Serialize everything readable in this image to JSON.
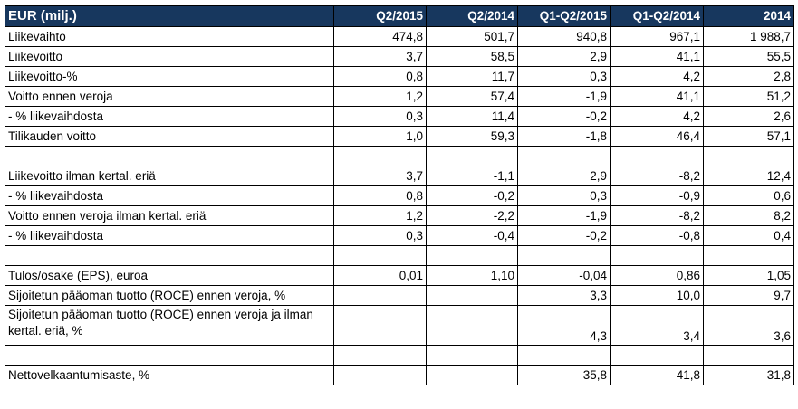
{
  "header": [
    "EUR (milj.)",
    "Q2/2015",
    "Q2/2014",
    "Q1-Q2/2015",
    "Q1-Q2/2014",
    "2014"
  ],
  "rows": [
    {
      "label": "Liikevaihto",
      "values": [
        "474,8",
        "501,7",
        "940,8",
        "967,1",
        "1 988,7"
      ]
    },
    {
      "label": "Liikevoitto",
      "values": [
        "3,7",
        "58,5",
        "2,9",
        "41,1",
        "55,5"
      ]
    },
    {
      "label": "Liikevoitto-%",
      "values": [
        "0,8",
        "11,7",
        "0,3",
        "4,2",
        "2,8"
      ]
    },
    {
      "label": "Voitto ennen veroja",
      "values": [
        "1,2",
        "57,4",
        "-1,9",
        "41,1",
        "51,2"
      ]
    },
    {
      "label": "- % liikevaihdosta",
      "values": [
        "0,3",
        "11,4",
        "-0,2",
        "4,2",
        "2,6"
      ]
    },
    {
      "label": "Tilikauden voitto",
      "values": [
        "1,0",
        "59,3",
        "-1,8",
        "46,4",
        "57,1"
      ]
    },
    {
      "label": "",
      "values": [
        "",
        "",
        "",
        "",
        ""
      ]
    },
    {
      "label": "Liikevoitto ilman kertal. eriä",
      "values": [
        "3,7",
        "-1,1",
        "2,9",
        "-8,2",
        "12,4"
      ]
    },
    {
      "label": "- % liikevaihdosta",
      "values": [
        "0,8",
        "-0,2",
        "0,3",
        "-0,9",
        "0,6"
      ]
    },
    {
      "label": "Voitto ennen veroja ilman kertal. eriä",
      "values": [
        "1,2",
        "-2,2",
        "-1,9",
        "-8,2",
        "8,2"
      ]
    },
    {
      "label": "- % liikevaihdosta",
      "values": [
        "0,3",
        "-0,4",
        "-0,2",
        "-0,8",
        "0,4"
      ]
    },
    {
      "label": "",
      "values": [
        "",
        "",
        "",
        "",
        ""
      ]
    },
    {
      "label": "Tulos/osake (EPS), euroa",
      "values": [
        "0,01",
        "1,10",
        "-0,04",
        "0,86",
        "1,05"
      ]
    },
    {
      "label": "Sijoitetun pääoman tuotto (ROCE) ennen veroja, %",
      "values": [
        "",
        "",
        "3,3",
        "10,0",
        "9,7"
      ]
    },
    {
      "label": "Sijoitetun pääoman tuotto (ROCE) ennen veroja ja ilman kertal. eriä, %",
      "values": [
        "",
        "",
        "4,3",
        "3,4",
        "3,6"
      ]
    },
    {
      "label": "",
      "values": [
        "",
        "",
        "",
        "",
        ""
      ]
    },
    {
      "label": "Nettovelkaantumisaste, %",
      "values": [
        "",
        "",
        "35,8",
        "41,8",
        "31,8"
      ]
    }
  ]
}
